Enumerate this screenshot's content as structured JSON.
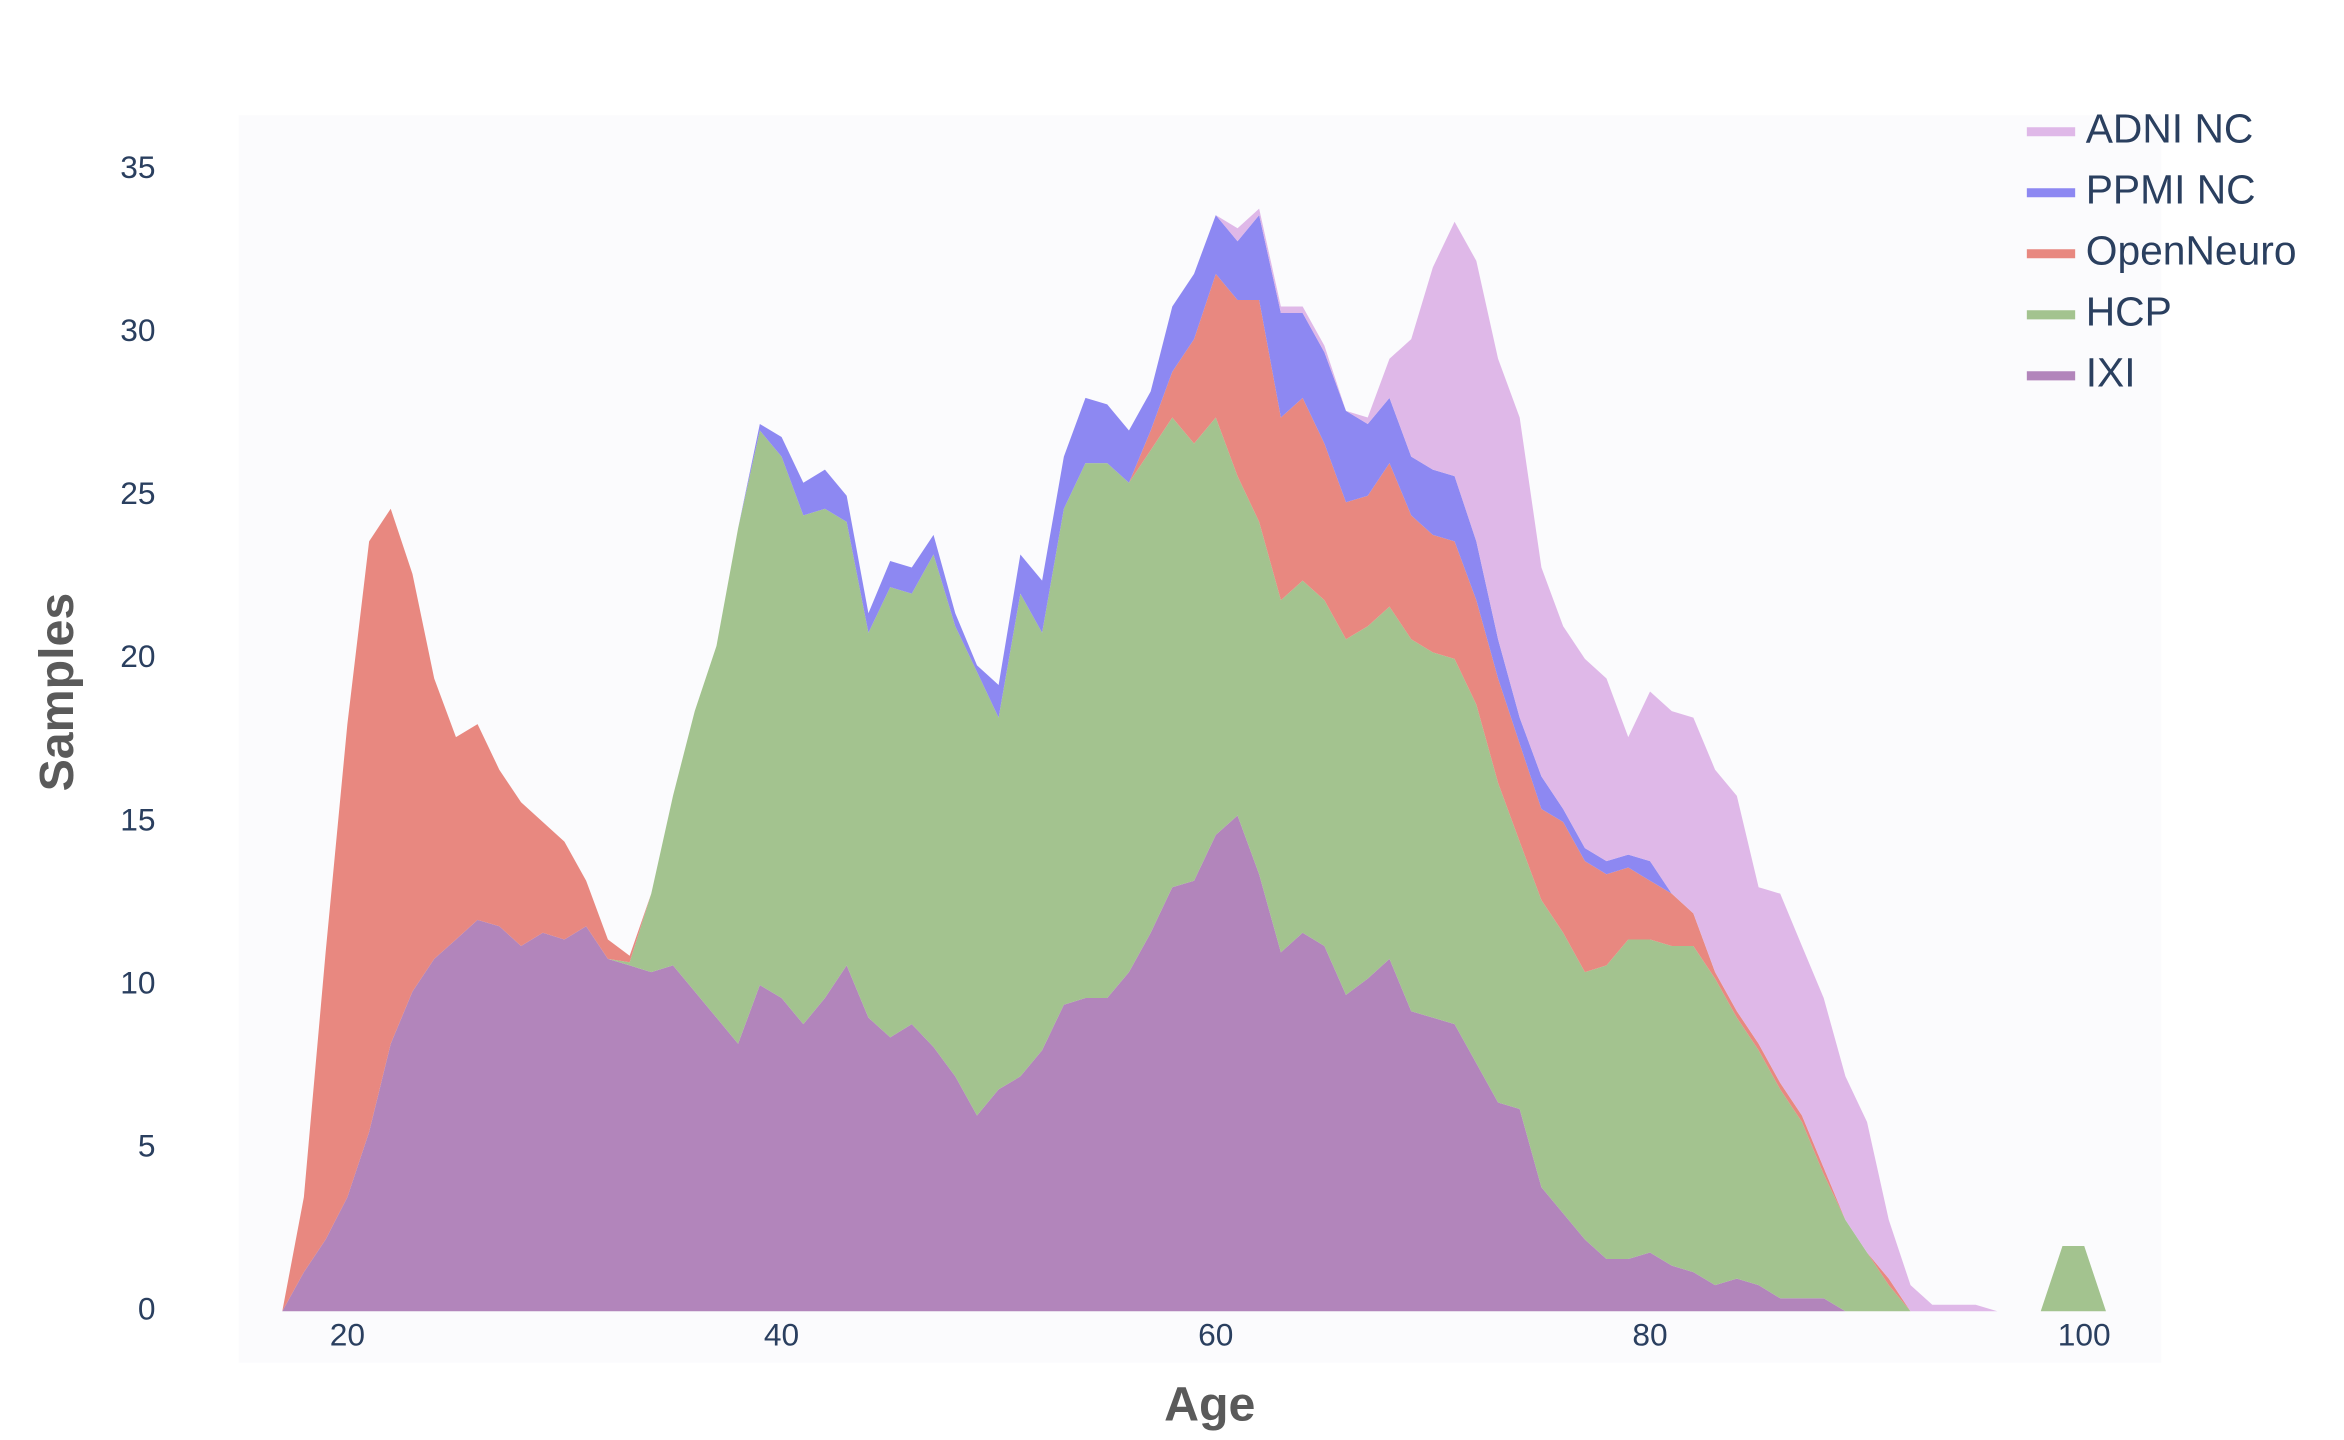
{
  "chart_data": {
    "type": "stacked-area",
    "x_label": "Age",
    "y_label": "Samples",
    "x": [
      17,
      18,
      19,
      20,
      21,
      22,
      23,
      24,
      25,
      26,
      27,
      28,
      29,
      30,
      31,
      32,
      33,
      34,
      35,
      36,
      37,
      38,
      39,
      40,
      41,
      42,
      43,
      44,
      45,
      46,
      47,
      48,
      49,
      50,
      51,
      52,
      53,
      54,
      55,
      56,
      57,
      58,
      59,
      60,
      61,
      62,
      63,
      64,
      65,
      66,
      67,
      68,
      69,
      70,
      71,
      72,
      73,
      74,
      75,
      76,
      77,
      78,
      79,
      80,
      81,
      82,
      83,
      84,
      85,
      86,
      87,
      88,
      89,
      90,
      91,
      92,
      93,
      94,
      95,
      96,
      97,
      98,
      99,
      100,
      101
    ],
    "series": [
      {
        "name": "ADNI NC",
        "color": "#dfb8e8",
        "values": [
          0,
          0,
          0,
          0,
          0,
          0,
          0,
          0,
          0,
          0,
          0,
          0,
          0,
          0,
          0,
          0,
          0,
          0,
          0,
          0,
          0,
          0,
          0,
          0,
          0,
          0,
          0,
          0,
          0,
          0,
          0,
          0,
          0,
          0,
          0,
          0,
          0,
          0,
          0,
          0,
          0,
          0,
          0,
          0,
          0.4,
          0.2,
          0.2,
          0.2,
          0.2,
          0,
          0.2,
          1.2,
          3.6,
          6.2,
          7.8,
          8.6,
          8.6,
          9.2,
          6.4,
          5.6,
          5.8,
          5.6,
          3.6,
          5.2,
          5.6,
          6.0,
          6.2,
          6.6,
          4.8,
          5.8,
          5.2,
          5.2,
          4.4,
          4.0,
          1.8,
          0.8,
          0.2,
          0.2,
          0.2,
          0,
          0,
          0,
          0,
          0,
          0
        ]
      },
      {
        "name": "PPMI NC",
        "color": "#8d88f2",
        "values": [
          0,
          0,
          0,
          0,
          0,
          0,
          0,
          0,
          0,
          0,
          0,
          0,
          0,
          0,
          0,
          0,
          0,
          0,
          0,
          0,
          0,
          0,
          0.2,
          0.6,
          1.0,
          1.2,
          0.8,
          0.6,
          0.8,
          0.8,
          0.6,
          0.4,
          0.2,
          1.0,
          1.2,
          1.6,
          1.6,
          2.0,
          1.8,
          1.6,
          1.2,
          2.0,
          2.0,
          1.8,
          1.8,
          2.6,
          3.2,
          2.6,
          2.8,
          2.8,
          2.2,
          2.0,
          1.8,
          2.0,
          2.0,
          1.8,
          1.2,
          0.8,
          1.0,
          0.4,
          0.4,
          0.4,
          0.4,
          0.6,
          0,
          0,
          0,
          0,
          0,
          0,
          0,
          0,
          0,
          0,
          0,
          0,
          0,
          0,
          0,
          0,
          0,
          0,
          0,
          0,
          0
        ]
      },
      {
        "name": "OpenNeuro",
        "color": "#e88880",
        "values": [
          0,
          2.3,
          8.8,
          14.5,
          18.1,
          16.4,
          12.8,
          8.6,
          6.2,
          6.0,
          4.8,
          4.4,
          3.4,
          3.0,
          1.4,
          0.6,
          0.2,
          0,
          0,
          0,
          0,
          0,
          0,
          0,
          0,
          0,
          0,
          0,
          0,
          0,
          0,
          0,
          0,
          0,
          0,
          0,
          0,
          0,
          0,
          0,
          0.6,
          1.4,
          3.2,
          4.4,
          5.4,
          6.8,
          5.6,
          5.6,
          4.8,
          4.2,
          4.0,
          4.4,
          3.8,
          3.6,
          3.6,
          3.2,
          3.2,
          3.0,
          2.8,
          3.4,
          3.4,
          2.8,
          2.2,
          1.8,
          1.6,
          1.0,
          0.2,
          0.2,
          0.2,
          0.2,
          0.2,
          0.2,
          0,
          0,
          0.2,
          0,
          0,
          0,
          0,
          0,
          0,
          0,
          0,
          0,
          0
        ]
      },
      {
        "name": "HCP",
        "color": "#a3c38f",
        "values": [
          0,
          0,
          0,
          0,
          0,
          0,
          0,
          0,
          0,
          0,
          0,
          0,
          0,
          0,
          0,
          0,
          0.1,
          2.4,
          5.2,
          8.6,
          11.4,
          15.8,
          17.0,
          16.6,
          15.6,
          15.0,
          13.6,
          11.8,
          13.8,
          13.2,
          15.1,
          13.8,
          13.6,
          11.4,
          14.8,
          12.8,
          15.2,
          16.4,
          16.4,
          15.0,
          14.8,
          14.4,
          13.4,
          12.8,
          10.4,
          10.8,
          10.8,
          10.8,
          10.6,
          10.9,
          10.8,
          10.8,
          11.4,
          11.2,
          11.2,
          11.0,
          9.8,
          8.2,
          8.8,
          8.6,
          8.2,
          9.0,
          9.8,
          9.6,
          9.8,
          10.0,
          9.4,
          8.0,
          7.2,
          6.4,
          5.4,
          3.8,
          2.8,
          1.8,
          0.8,
          0,
          0,
          0,
          0,
          0,
          0,
          0,
          2,
          2,
          0
        ]
      },
      {
        "name": "IXI",
        "color": "#b285bb",
        "values": [
          0,
          1.2,
          2.2,
          3.5,
          5.5,
          8.2,
          9.8,
          10.8,
          11.4,
          12.0,
          11.8,
          11.2,
          11.6,
          11.4,
          11.8,
          10.8,
          10.6,
          10.4,
          10.6,
          9.8,
          9.0,
          8.2,
          10.0,
          9.6,
          8.8,
          9.6,
          10.6,
          9.0,
          8.4,
          8.8,
          8.1,
          7.2,
          6.0,
          6.8,
          7.2,
          8.0,
          9.4,
          9.6,
          9.6,
          10.4,
          11.6,
          13.0,
          13.2,
          14.6,
          15.2,
          13.4,
          11.0,
          11.6,
          11.2,
          9.7,
          10.2,
          10.8,
          9.2,
          9.0,
          8.8,
          7.6,
          6.4,
          6.2,
          3.8,
          3.0,
          2.2,
          1.6,
          1.6,
          1.8,
          1.4,
          1.2,
          0.8,
          1.0,
          0.8,
          0.4,
          0.4,
          0.4,
          0,
          0,
          0,
          0,
          0,
          0,
          0,
          0,
          0,
          0,
          0,
          0,
          0
        ]
      }
    ],
    "xlim": [
      15,
      103.5
    ],
    "ylim": [
      0,
      36.5
    ],
    "xticks": [
      20,
      40,
      60,
      80,
      100
    ],
    "yticks": [
      0,
      5,
      10,
      15,
      20,
      25,
      30,
      35
    ],
    "grid": false,
    "legend": "top-right"
  }
}
